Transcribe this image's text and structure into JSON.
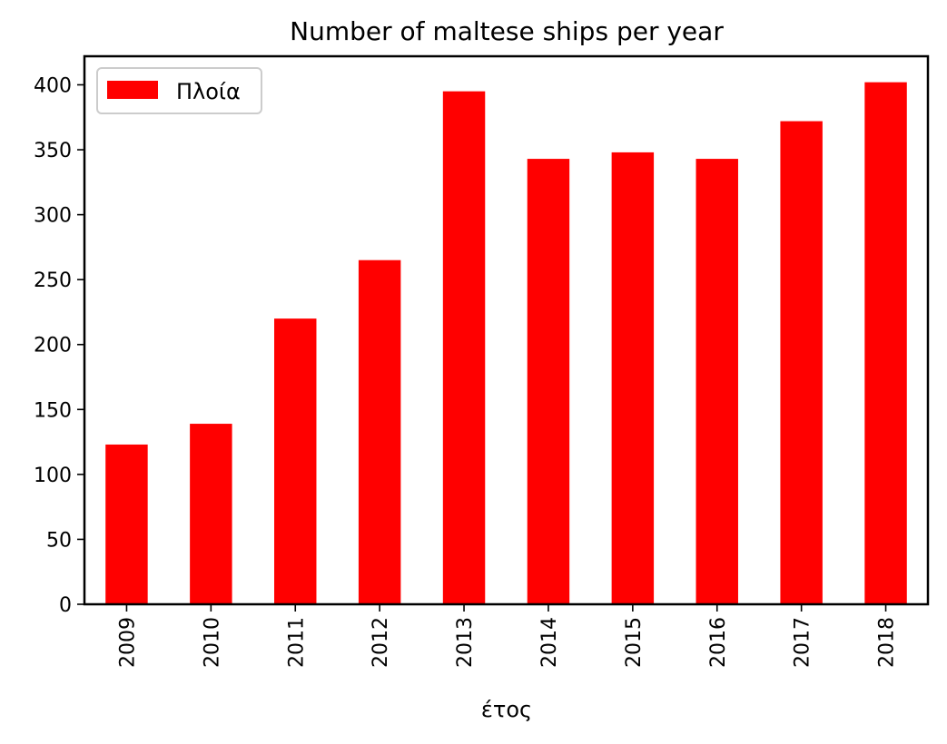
{
  "chart_data": {
    "type": "bar",
    "title": "Number of maltese ships per year",
    "xlabel": "έτος",
    "ylabel": "",
    "categories": [
      "2009",
      "2010",
      "2011",
      "2012",
      "2013",
      "2014",
      "2015",
      "2016",
      "2017",
      "2018"
    ],
    "series": [
      {
        "name": "Πλοία",
        "color": "#ff0000",
        "values": [
          123,
          139,
          220,
          265,
          395,
          343,
          348,
          343,
          372,
          402
        ]
      }
    ],
    "ylim": [
      0,
      422
    ],
    "yticks": [
      0,
      50,
      100,
      150,
      200,
      250,
      300,
      350,
      400
    ],
    "grid": false,
    "legend_position": "top-left"
  }
}
